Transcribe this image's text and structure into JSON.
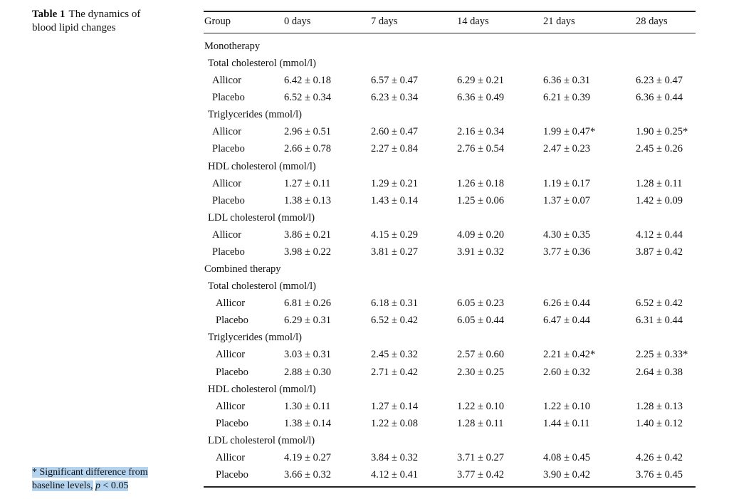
{
  "caption": {
    "label": "Table 1",
    "text": "The dynamics of blood lipid changes"
  },
  "footnote": {
    "text": "* Significant difference from baseline levels,",
    "p": "p",
    "rest": "< 0.05"
  },
  "table": {
    "header": [
      "Group",
      "0 days",
      "7 days",
      "14 days",
      "21 days",
      "28 days"
    ],
    "groups": [
      {
        "label": "Monotherapy",
        "sections": [
          {
            "label": "Total cholesterol (mmol/l)",
            "rows": [
              {
                "name": "Allicor",
                "values": [
                  "6.42 ± 0.18",
                  "6.57 ± 0.47",
                  "6.29 ± 0.21",
                  "6.36 ± 0.31",
                  "6.23 ± 0.47"
                ]
              },
              {
                "name": "Placebo",
                "values": [
                  "6.52 ± 0.34",
                  "6.23 ± 0.34",
                  "6.36 ± 0.49",
                  "6.21 ± 0.39",
                  "6.36 ± 0.44"
                ]
              }
            ]
          },
          {
            "label": "Triglycerides (mmol/l)",
            "rows": [
              {
                "name": "Allicor",
                "values": [
                  "2.96 ± 0.51",
                  "2.60 ± 0.47",
                  "2.16 ± 0.34",
                  "1.99 ± 0.47*",
                  "1.90 ± 0.25*"
                ]
              },
              {
                "name": "Placebo",
                "values": [
                  "2.66 ± 0.78",
                  "2.27 ± 0.84",
                  "2.76 ± 0.54",
                  "2.47 ± 0.23",
                  "2.45 ± 0.26"
                ]
              }
            ]
          },
          {
            "label": "HDL cholesterol (mmol/l)",
            "rows": [
              {
                "name": "Allicor",
                "values": [
                  "1.27 ± 0.11",
                  "1.29 ± 0.21",
                  "1.26 ± 0.18",
                  "1.19 ± 0.17",
                  "1.28 ± 0.11"
                ]
              },
              {
                "name": "Placebo",
                "values": [
                  "1.38 ± 0.13",
                  "1.43 ± 0.14",
                  "1.25 ± 0.06",
                  "1.37 ± 0.07",
                  "1.42 ± 0.09"
                ]
              }
            ]
          },
          {
            "label": "LDL cholesterol (mmol/l)",
            "rows": [
              {
                "name": "Allicor",
                "values": [
                  "3.86 ± 0.21",
                  "4.15 ± 0.29",
                  "4.09 ± 0.20",
                  "4.30 ± 0.35",
                  "4.12 ± 0.44"
                ]
              },
              {
                "name": "Placebo",
                "values": [
                  "3.98 ± 0.22",
                  "3.81 ± 0.27",
                  "3.91 ± 0.32",
                  "3.77 ± 0.36",
                  "3.87 ± 0.42"
                ]
              }
            ]
          }
        ]
      },
      {
        "label": "Combined therapy",
        "sections": [
          {
            "label": "Total cholesterol (mmol/l)",
            "rows": [
              {
                "name": "Allicor",
                "values": [
                  "6.81 ± 0.26",
                  "6.18 ± 0.31",
                  "6.05 ± 0.23",
                  "6.26 ± 0.44",
                  "6.52 ± 0.42"
                ]
              },
              {
                "name": "Placebo",
                "values": [
                  "6.29 ± 0.31",
                  "6.52 ± 0.42",
                  "6.05 ± 0.44",
                  "6.47 ± 0.44",
                  "6.31 ± 0.44"
                ]
              }
            ]
          },
          {
            "label": "Triglycerides (mmol/l)",
            "rows": [
              {
                "name": "Allicor",
                "values": [
                  "3.03 ± 0.31",
                  "2.45 ± 0.32",
                  "2.57 ± 0.60",
                  "2.21 ± 0.42*",
                  "2.25 ± 0.33*"
                ]
              },
              {
                "name": "Placebo",
                "values": [
                  "2.88 ± 0.30",
                  "2.71 ± 0.42",
                  "2.30 ± 0.25",
                  "2.60 ± 0.32",
                  "2.64 ± 0.38"
                ]
              }
            ]
          },
          {
            "label": "HDL cholesterol (mmol/l)",
            "rows": [
              {
                "name": "Allicor",
                "values": [
                  "1.30 ± 0.11",
                  "1.27 ± 0.14",
                  "1.22 ± 0.10",
                  "1.22 ± 0.10",
                  "1.28 ± 0.13"
                ]
              },
              {
                "name": "Placebo",
                "values": [
                  "1.38 ± 0.14",
                  "1.22 ± 0.08",
                  "1.28 ± 0.11",
                  "1.44 ± 0.11",
                  "1.40 ± 0.12"
                ]
              }
            ]
          },
          {
            "label": "LDL cholesterol (mmol/l)",
            "rows": [
              {
                "name": "Allicor",
                "values": [
                  "4.19 ± 0.27",
                  "3.84 ± 0.32",
                  "3.71 ± 0.27",
                  "4.08 ± 0.45",
                  "4.26 ± 0.42"
                ]
              },
              {
                "name": "Placebo",
                "values": [
                  "3.66 ± 0.32",
                  "4.12 ± 0.41",
                  "3.77 ± 0.42",
                  "3.90 ± 0.42",
                  "3.76 ± 0.45"
                ]
              }
            ]
          }
        ]
      }
    ]
  }
}
